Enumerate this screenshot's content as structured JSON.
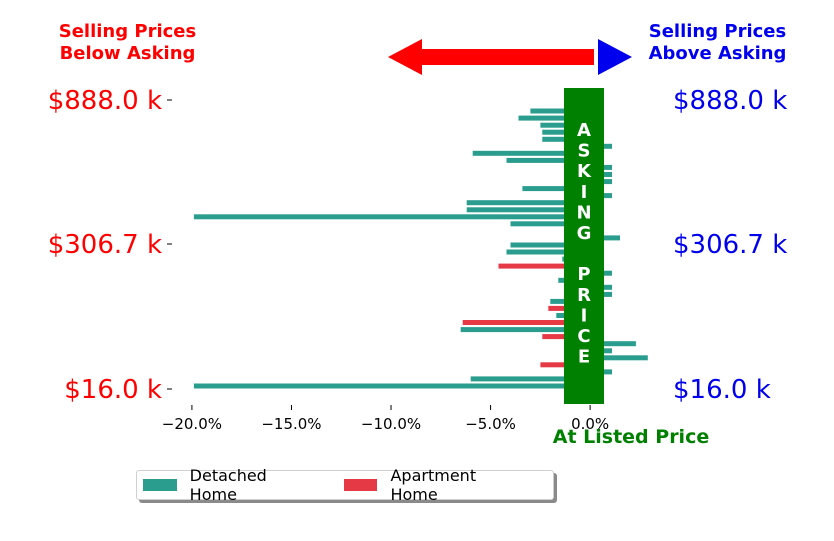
{
  "header": {
    "left_note": "Selling Prices\nBelow Asking",
    "right_note": "Selling Prices\nAbove Asking",
    "left_color": "#ff0000",
    "right_color": "#0000ee"
  },
  "center_band": {
    "label_letters": [
      "A",
      "S",
      "K",
      "I",
      "N",
      "G",
      "",
      "P",
      "R",
      "I",
      "C",
      "E"
    ],
    "color": "#008000"
  },
  "footer_note": "At Listed Price",
  "footer_color": "#008000",
  "legend": {
    "items": [
      {
        "label": "Detached Home",
        "color": "#2a9d8f"
      },
      {
        "label": "Apartment Home",
        "color": "#e63946"
      }
    ]
  },
  "chart_data": {
    "type": "bar",
    "orientation": "horizontal",
    "xlim": [
      -21,
      1.5
    ],
    "x_ticks": [
      -20,
      -15,
      -10,
      -5,
      0
    ],
    "x_tick_labels": [
      "−20.0%",
      "−15.0%",
      "−10.0%",
      "−5.0%",
      "0.0%"
    ],
    "left_ticks": [
      {
        "label": "$888.0 k",
        "value": 888.0
      },
      {
        "label": "$306.7 k",
        "value": 306.7
      },
      {
        "label": "$16.0 k",
        "value": 16.0
      }
    ],
    "right_ticks": [
      {
        "label": "$888.0 k",
        "value": 888.0
      },
      {
        "label": "$306.7 k",
        "value": 306.7
      },
      {
        "label": "$16.0 k",
        "value": 16.0
      }
    ],
    "series": [
      {
        "name": "Detached Home",
        "color": "#2a9d8f",
        "values": [
          -1.3,
          -3.0,
          -3.6,
          -2.5,
          -2.4,
          -2.4,
          1.1,
          -5.9,
          -4.2,
          1.1,
          1.1,
          1.1,
          -3.4,
          1.1,
          -6.2,
          -6.2,
          -19.9,
          -4.0,
          -1.3,
          1.5,
          -4.0,
          -4.2,
          -1.4,
          null,
          1.1,
          -1.6,
          1.1,
          1.1,
          -2.0,
          null,
          -1.7,
          null,
          -6.5,
          null,
          2.3,
          1.1,
          2.9,
          null,
          1.1,
          -6.0,
          -19.9
        ]
      },
      {
        "name": "Apartment Home",
        "color": "#e63946",
        "values": [
          null,
          null,
          null,
          null,
          null,
          null,
          null,
          null,
          null,
          null,
          null,
          null,
          null,
          null,
          null,
          null,
          null,
          null,
          null,
          null,
          null,
          null,
          null,
          -4.6,
          null,
          null,
          null,
          null,
          null,
          -2.1,
          null,
          -6.4,
          null,
          -2.4,
          null,
          null,
          null,
          -2.5,
          null,
          null,
          null
        ]
      }
    ]
  }
}
